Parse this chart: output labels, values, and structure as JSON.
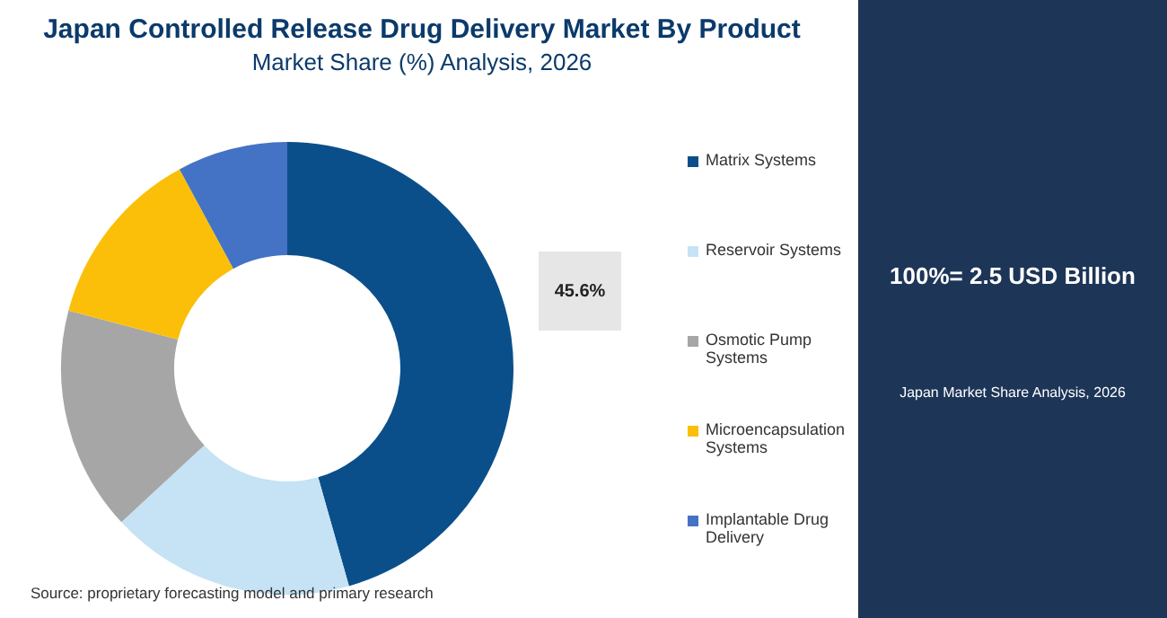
{
  "chart_data": {
    "type": "donut",
    "title": "Japan Controlled Release Drug Delivery Market By Product",
    "subtitle": "Market Share (%) Analysis, 2026",
    "categories": [
      "Matrix Systems",
      "Reservoir Systems",
      "Osmotic Pump Systems",
      "Microencapsulation Systems",
      "Implantable Drug Delivery"
    ],
    "values": [
      45.6,
      17.5,
      16,
      13,
      7.9
    ],
    "colors": [
      "#0b4f8a",
      "#c5e3f5",
      "#a6a6a6",
      "#fbbf0a",
      "#4472c4"
    ],
    "value_labels": [
      "45.6%",
      null,
      null,
      null,
      null
    ],
    "legend": "right",
    "annotations": [
      "100%= 2.5 USD Billion",
      "Japan Market Share Analysis, 2026",
      "Source: proprietary forecasting model and primary research"
    ]
  }
}
